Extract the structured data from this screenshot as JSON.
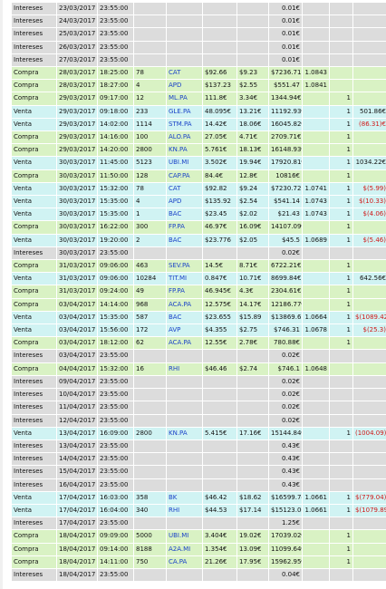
{
  "colors": {
    "intereses_row": "#dcdcdc",
    "compra_row": "#d9f2c4",
    "venta_row": "#d0f3f3",
    "ticker": "#1a43c8",
    "negative": "#d01818"
  },
  "rows": [
    {
      "type": "Intereses",
      "date": "23/03/2017",
      "time": "23:55:00",
      "qty": "",
      "ticker": "",
      "price": "",
      "comm": "",
      "total": "0.01€",
      "fx": "",
      "fees": "",
      "pnl": ""
    },
    {
      "type": "Intereses",
      "date": "24/03/2017",
      "time": "23:55:00",
      "qty": "",
      "ticker": "",
      "price": "",
      "comm": "",
      "total": "0.01€",
      "fx": "",
      "fees": "",
      "pnl": ""
    },
    {
      "type": "Intereses",
      "date": "25/03/2017",
      "time": "23:55:00",
      "qty": "",
      "ticker": "",
      "price": "",
      "comm": "",
      "total": "0.01€",
      "fx": "",
      "fees": "",
      "pnl": ""
    },
    {
      "type": "Intereses",
      "date": "26/03/2017",
      "time": "23:55:00",
      "qty": "",
      "ticker": "",
      "price": "",
      "comm": "",
      "total": "0.01€",
      "fx": "",
      "fees": "",
      "pnl": ""
    },
    {
      "type": "Intereses",
      "date": "27/03/2017",
      "time": "23:55:00",
      "qty": "",
      "ticker": "",
      "price": "",
      "comm": "",
      "total": "0.01€",
      "fx": "",
      "fees": "",
      "pnl": ""
    },
    {
      "type": "Compra",
      "date": "28/03/2017",
      "time": "18:25:00",
      "qty": "78",
      "ticker": "CAT",
      "price": "$92.66",
      "comm": "$9.23",
      "total": "$7236.71",
      "fx": "1.0843",
      "fees": "",
      "pnl": ""
    },
    {
      "type": "Compra",
      "date": "28/03/2017",
      "time": "18:27:00",
      "qty": "4",
      "ticker": "APD",
      "price": "$137.23",
      "comm": "$2.55",
      "total": "$551.47",
      "fx": "1.0841",
      "fees": "",
      "pnl": ""
    },
    {
      "type": "Compra",
      "date": "29/03/2017",
      "time": "09:17:00",
      "qty": "12",
      "ticker": "ML.PA",
      "price": "111.8€",
      "comm": "3.34€",
      "total": "1344.94€",
      "fx": "",
      "fees": "1",
      "pnl": ""
    },
    {
      "type": "Venta",
      "date": "29/03/2017",
      "time": "09:18:00",
      "qty": "233",
      "ticker": "GLE.PA",
      "price": "48.095€",
      "comm": "13.21€",
      "total": "11192.93€",
      "fx": "",
      "fees": "1",
      "pnl": "501.86€"
    },
    {
      "type": "Venta",
      "date": "29/03/2017",
      "time": "14:02:00",
      "qty": "1114",
      "ticker": "STM.PA",
      "price": "14.42€",
      "comm": "18.06€",
      "total": "16045.82€",
      "fx": "",
      "fees": "1",
      "pnl": "(86.31)€"
    },
    {
      "type": "Compra",
      "date": "29/03/2017",
      "time": "14:16:00",
      "qty": "100",
      "ticker": "ALO.PA",
      "price": "27.05€",
      "comm": "4.71€",
      "total": "2709.71€",
      "fx": "",
      "fees": "1",
      "pnl": ""
    },
    {
      "type": "Compra",
      "date": "29/03/2017",
      "time": "14:20:00",
      "qty": "2800",
      "ticker": "KN.PA",
      "price": "5.761€",
      "comm": "18.13€",
      "total": "16148.93€",
      "fx": "",
      "fees": "1",
      "pnl": ""
    },
    {
      "type": "Venta",
      "date": "30/03/2017",
      "time": "11:45:00",
      "qty": "5123",
      "ticker": "UBI.MI",
      "price": "3.502€",
      "comm": "19.94€",
      "total": "17920.81€",
      "fx": "",
      "fees": "1",
      "pnl": "1034.22€"
    },
    {
      "type": "Compra",
      "date": "30/03/2017",
      "time": "11:50:00",
      "qty": "128",
      "ticker": "CAP.PA",
      "price": "84.4€",
      "comm": "12.8€",
      "total": "10816€",
      "fx": "",
      "fees": "1",
      "pnl": ""
    },
    {
      "type": "Venta",
      "date": "30/03/2017",
      "time": "15:32:00",
      "qty": "78",
      "ticker": "CAT",
      "price": "$92.82",
      "comm": "$9.24",
      "total": "$7230.72",
      "fx": "1.0741",
      "fees": "1",
      "pnl": "$(5.99)"
    },
    {
      "type": "Venta",
      "date": "30/03/2017",
      "time": "15:35:00",
      "qty": "4",
      "ticker": "APD",
      "price": "$135.92",
      "comm": "$2.54",
      "total": "$541.14",
      "fx": "1.0743",
      "fees": "1",
      "pnl": "$(10.33)"
    },
    {
      "type": "Venta",
      "date": "30/03/2017",
      "time": "15:35:00",
      "qty": "1",
      "ticker": "BAC",
      "price": "$23.45",
      "comm": "$2.02",
      "total": "$21.43",
      "fx": "1.0743",
      "fees": "1",
      "pnl": "$(4.06)"
    },
    {
      "type": "Compra",
      "date": "30/03/2017",
      "time": "16:22:00",
      "qty": "300",
      "ticker": "FP.PA",
      "price": "46.97€",
      "comm": "16.09€",
      "total": "14107.09€",
      "fx": "",
      "fees": "1",
      "pnl": ""
    },
    {
      "type": "Venta",
      "date": "30/03/2017",
      "time": "19:20:00",
      "qty": "2",
      "ticker": "BAC",
      "price": "$23.776",
      "comm": "$2.05",
      "total": "$45.5",
      "fx": "1.0689",
      "fees": "1",
      "pnl": "$(5.46)"
    },
    {
      "type": "Intereses",
      "date": "30/03/2017",
      "time": "23:55:00",
      "qty": "",
      "ticker": "",
      "price": "",
      "comm": "",
      "total": "0.02€",
      "fx": "",
      "fees": "",
      "pnl": ""
    },
    {
      "type": "Compra",
      "date": "31/03/2017",
      "time": "09:06:00",
      "qty": "463",
      "ticker": "SEV.PA",
      "price": "14.5€",
      "comm": "8.71€",
      "total": "6722.21€",
      "fx": "",
      "fees": "1",
      "pnl": ""
    },
    {
      "type": "Venta",
      "date": "31/03/2017",
      "time": "09:06:00",
      "qty": "10284",
      "ticker": "TIT.MI",
      "price": "0.847€",
      "comm": "10.71€",
      "total": "8699.84€",
      "fx": "",
      "fees": "1",
      "pnl": "642.56€"
    },
    {
      "type": "Compra",
      "date": "31/03/2017",
      "time": "09:24:00",
      "qty": "49",
      "ticker": "FP.PA",
      "price": "46.945€",
      "comm": "4.3€",
      "total": "2304.61€",
      "fx": "",
      "fees": "1",
      "pnl": ""
    },
    {
      "type": "Compra",
      "date": "03/04/2017",
      "time": "14:14:00",
      "qty": "968",
      "ticker": "ACA.PA",
      "price": "12.575€",
      "comm": "14.17€",
      "total": "12186.77€",
      "fx": "",
      "fees": "1",
      "pnl": ""
    },
    {
      "type": "Venta",
      "date": "03/04/2017",
      "time": "15:35:00",
      "qty": "587",
      "ticker": "BAC",
      "price": "$23.655",
      "comm": "$15.89",
      "total": "$13869.6",
      "fx": "1.0664",
      "fees": "1",
      "pnl": "$(1089.42)"
    },
    {
      "type": "Venta",
      "date": "03/04/2017",
      "time": "15:56:00",
      "qty": "172",
      "ticker": "AVP",
      "price": "$4.355",
      "comm": "$2.75",
      "total": "$746.31",
      "fx": "1.0678",
      "fees": "1",
      "pnl": "$(25.3)"
    },
    {
      "type": "Compra",
      "date": "03/04/2017",
      "time": "18:12:00",
      "qty": "62",
      "ticker": "ACA.PA",
      "price": "12.55€",
      "comm": "2.78€",
      "total": "780.88€",
      "fx": "",
      "fees": "1",
      "pnl": ""
    },
    {
      "type": "Intereses",
      "date": "03/04/2017",
      "time": "23:55:00",
      "qty": "",
      "ticker": "",
      "price": "",
      "comm": "",
      "total": "0.02€",
      "fx": "",
      "fees": "",
      "pnl": ""
    },
    {
      "type": "Compra",
      "date": "04/04/2017",
      "time": "15:32:00",
      "qty": "16",
      "ticker": "RHI",
      "price": "$46.46",
      "comm": "$2.74",
      "total": "$746.1",
      "fx": "1.0648",
      "fees": "",
      "pnl": ""
    },
    {
      "type": "Intereses",
      "date": "09/04/2017",
      "time": "23:55:00",
      "qty": "",
      "ticker": "",
      "price": "",
      "comm": "",
      "total": "0.02€",
      "fx": "",
      "fees": "",
      "pnl": ""
    },
    {
      "type": "Intereses",
      "date": "10/04/2017",
      "time": "23:55:00",
      "qty": "",
      "ticker": "",
      "price": "",
      "comm": "",
      "total": "0.02€",
      "fx": "",
      "fees": "",
      "pnl": ""
    },
    {
      "type": "Intereses",
      "date": "11/04/2017",
      "time": "23:55:00",
      "qty": "",
      "ticker": "",
      "price": "",
      "comm": "",
      "total": "0.02€",
      "fx": "",
      "fees": "",
      "pnl": ""
    },
    {
      "type": "Intereses",
      "date": "12/04/2017",
      "time": "23:55:00",
      "qty": "",
      "ticker": "",
      "price": "",
      "comm": "",
      "total": "0.02€",
      "fx": "",
      "fees": "",
      "pnl": ""
    },
    {
      "type": "Venta",
      "date": "13/04/2017",
      "time": "16:09:00",
      "qty": "2800",
      "ticker": "KN.PA",
      "price": "5.415€",
      "comm": "17.16€",
      "total": "15144.84€",
      "fx": "",
      "fees": "1",
      "pnl": "(1004.09)€"
    },
    {
      "type": "Intereses",
      "date": "13/04/2017",
      "time": "23:55:00",
      "qty": "",
      "ticker": "",
      "price": "",
      "comm": "",
      "total": "0.43€",
      "fx": "",
      "fees": "",
      "pnl": ""
    },
    {
      "type": "Intereses",
      "date": "14/04/2017",
      "time": "23:55:00",
      "qty": "",
      "ticker": "",
      "price": "",
      "comm": "",
      "total": "0.43€",
      "fx": "",
      "fees": "",
      "pnl": ""
    },
    {
      "type": "Intereses",
      "date": "15/04/2017",
      "time": "23:55:00",
      "qty": "",
      "ticker": "",
      "price": "",
      "comm": "",
      "total": "0.43€",
      "fx": "",
      "fees": "",
      "pnl": ""
    },
    {
      "type": "Intereses",
      "date": "16/04/2017",
      "time": "23:55:00",
      "qty": "",
      "ticker": "",
      "price": "",
      "comm": "",
      "total": "0.43€",
      "fx": "",
      "fees": "",
      "pnl": ""
    },
    {
      "type": "Venta",
      "date": "17/04/2017",
      "time": "16:03:00",
      "qty": "358",
      "ticker": "BK",
      "price": "$46.42",
      "comm": "$18.62",
      "total": "$16599.74",
      "fx": "1.0661",
      "fees": "1",
      "pnl": "$(779.04)"
    },
    {
      "type": "Venta",
      "date": "17/04/2017",
      "time": "16:04:00",
      "qty": "340",
      "ticker": "RHI",
      "price": "$44.53",
      "comm": "$17.14",
      "total": "$15123.06",
      "fx": "1.0661",
      "fees": "1",
      "pnl": "$(1079.89)"
    },
    {
      "type": "Intereses",
      "date": "17/04/2017",
      "time": "23:55:00",
      "qty": "",
      "ticker": "",
      "price": "",
      "comm": "",
      "total": "1.25€",
      "fx": "",
      "fees": "",
      "pnl": ""
    },
    {
      "type": "Compra",
      "date": "18/04/2017",
      "time": "09:09:00",
      "qty": "5000",
      "ticker": "UBI.MI",
      "price": "3.404€",
      "comm": "19.02€",
      "total": "17039.02€",
      "fx": "",
      "fees": "1",
      "pnl": ""
    },
    {
      "type": "Compra",
      "date": "18/04/2017",
      "time": "09:14:00",
      "qty": "8188",
      "ticker": "A2A.MI",
      "price": "1.354€",
      "comm": "13.09€",
      "total": "11099.64€",
      "fx": "",
      "fees": "1",
      "pnl": ""
    },
    {
      "type": "Compra",
      "date": "18/04/2017",
      "time": "14:11:00",
      "qty": "750",
      "ticker": "CA.PA",
      "price": "21.26€",
      "comm": "17.95€",
      "total": "15962.95€",
      "fx": "",
      "fees": "1",
      "pnl": ""
    },
    {
      "type": "Intereses",
      "date": "18/04/2017",
      "time": "23:55:00",
      "qty": "",
      "ticker": "",
      "price": "",
      "comm": "",
      "total": "0.04€",
      "fx": "",
      "fees": "",
      "pnl": ""
    }
  ]
}
